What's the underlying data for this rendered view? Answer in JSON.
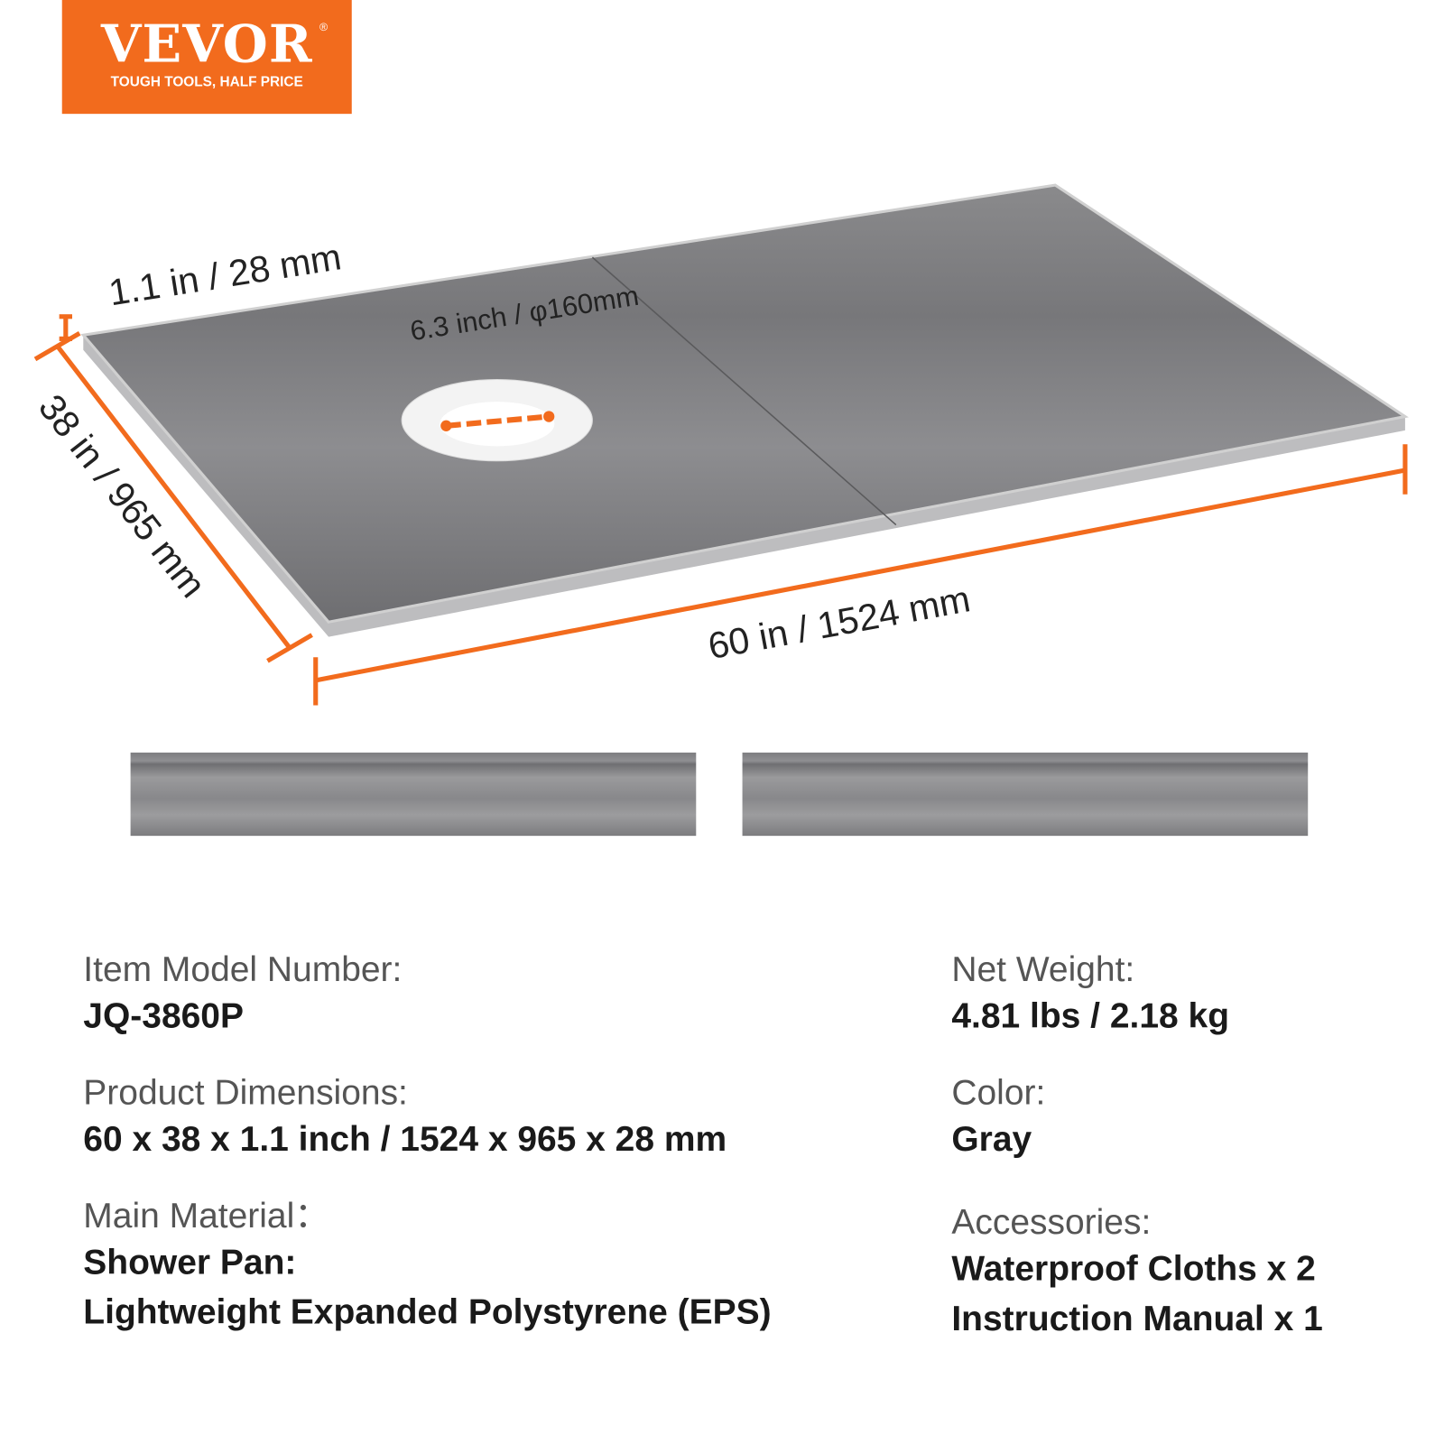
{
  "logo": {
    "brand": "VEVOR",
    "registered": "®",
    "tagline": "TOUGH TOOLS, HALF PRICE",
    "color": "#f26b1d"
  },
  "dimensions": {
    "thickness": "1.1 in / 28 mm",
    "drain": "6.3 inch / φ160mm",
    "depth": "38 in / 965 mm",
    "length": "60 in / 1524 mm",
    "line_color": "#f26b1d"
  },
  "specs": {
    "left": [
      {
        "label": "Item Model Number:",
        "values": [
          "JQ-3860P"
        ]
      },
      {
        "label": "Product Dimensions:",
        "values": [
          "60 x 38 x 1.1 inch / 1524 x 965 x 28 mm"
        ]
      },
      {
        "label": "Main Material：",
        "values": [
          "Shower Pan:",
          "Lightweight Expanded Polystyrene (EPS)"
        ]
      }
    ],
    "right": [
      {
        "label": "Net Weight:",
        "values": [
          "4.81 lbs / 2.18 kg"
        ]
      },
      {
        "label": "Color:",
        "values": [
          "Gray"
        ]
      },
      {
        "label": "Accessories:",
        "values": [
          "Waterproof Cloths x 2",
          "Instruction Manual x 1"
        ]
      }
    ]
  }
}
